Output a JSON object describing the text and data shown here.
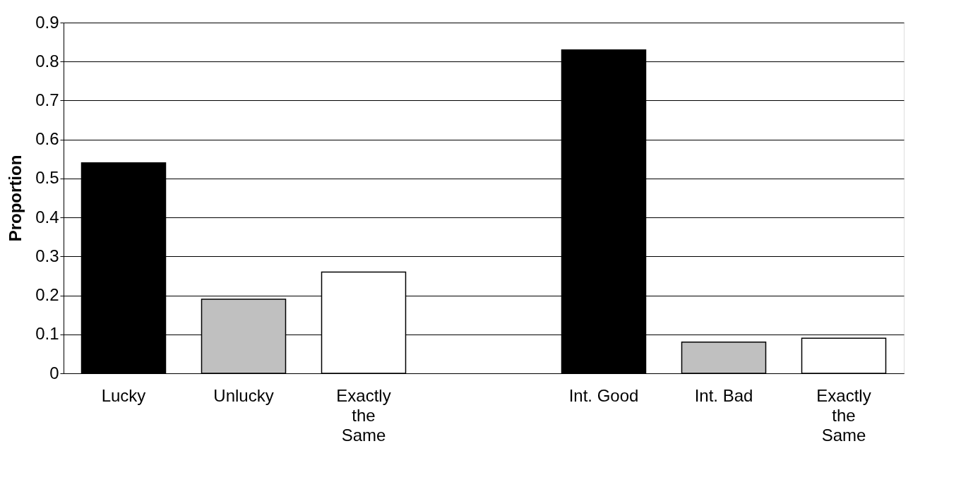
{
  "chart_data": {
    "type": "bar",
    "ylabel": "Proportion",
    "categories": [
      "Lucky",
      "Unlucky",
      "Exactly the Same",
      null,
      "Int. Good",
      "Int. Bad",
      "Exactly the Same"
    ],
    "values": [
      0.54,
      0.19,
      0.26,
      null,
      0.83,
      0.08,
      0.09
    ],
    "colors": [
      "#000000",
      "#c0c0c0",
      "#ffffff",
      null,
      "#000000",
      "#c0c0c0",
      "#ffffff"
    ],
    "ylim": [
      0,
      0.9
    ],
    "yticks": [
      0,
      0.1,
      0.2,
      0.3,
      0.4,
      0.5,
      0.6,
      0.7,
      0.8,
      0.9
    ],
    "grid": "y"
  }
}
